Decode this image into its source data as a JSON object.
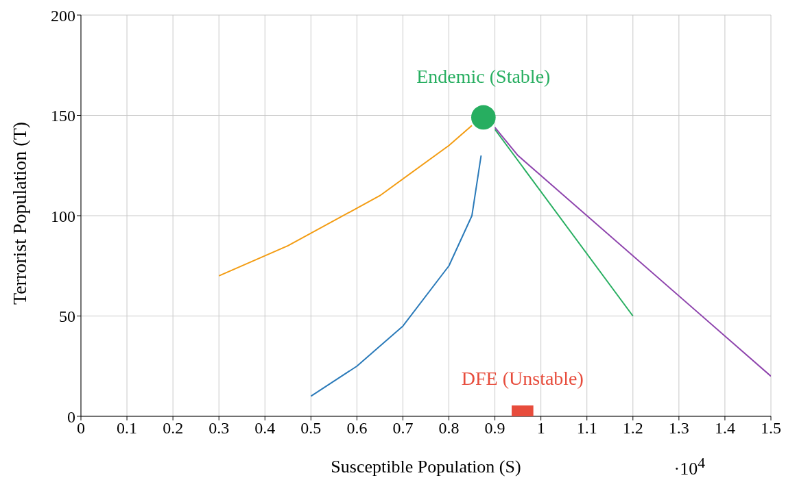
{
  "chart_data": {
    "type": "line",
    "xlabel": "Susceptible Population (S)",
    "ylabel": "Terrorist Population (T)",
    "xlim": [
      0,
      1.5
    ],
    "xticks": [
      0,
      0.1,
      0.2,
      0.3,
      0.4,
      0.5,
      0.6,
      0.7,
      0.8,
      0.9,
      {
        "value": 1,
        "label": "1"
      },
      1.1,
      1.2,
      1.3,
      1.4,
      1.5
    ],
    "ylim": [
      0,
      200
    ],
    "yticks": [
      0,
      50,
      100,
      150,
      200
    ],
    "grid": true,
    "line_style": "solid",
    "series": [
      {
        "type": "line",
        "color": "#f39c12",
        "marker": "none",
        "x": [
          0.3,
          0.45,
          0.65,
          0.8,
          0.85
        ],
        "values": [
          70,
          85,
          110,
          135,
          145
        ]
      },
      {
        "type": "line",
        "color": "#2a7ab9",
        "marker": "none",
        "x": [
          0.5,
          0.6,
          0.7,
          0.8,
          0.85,
          0.87
        ],
        "values": [
          10,
          25,
          45,
          75,
          100,
          130
        ]
      },
      {
        "type": "line",
        "color": "#27ae60",
        "marker": "none",
        "x": [
          0.9,
          1.2
        ],
        "values": [
          143,
          50
        ]
      },
      {
        "type": "line",
        "color": "#8e44ad",
        "marker": "none",
        "x": [
          0.9,
          0.95,
          1.5
        ],
        "values": [
          144,
          130,
          20
        ]
      },
      {
        "type": "scatter",
        "color": "#27ae60",
        "marker": "circle",
        "x": [
          0.875
        ],
        "values": [
          149
        ]
      },
      {
        "type": "scatter",
        "color": "#e74c3c",
        "marker": "square",
        "x": [
          0.96
        ],
        "values": [
          0
        ]
      }
    ],
    "annotations": [
      {
        "text": "Endemic (Stable)",
        "x": 0.875,
        "y": 149
      },
      {
        "text": "DFE (Unstable)",
        "x": 0.96,
        "y": 0
      },
      "·10$^{4}$"
    ]
  }
}
